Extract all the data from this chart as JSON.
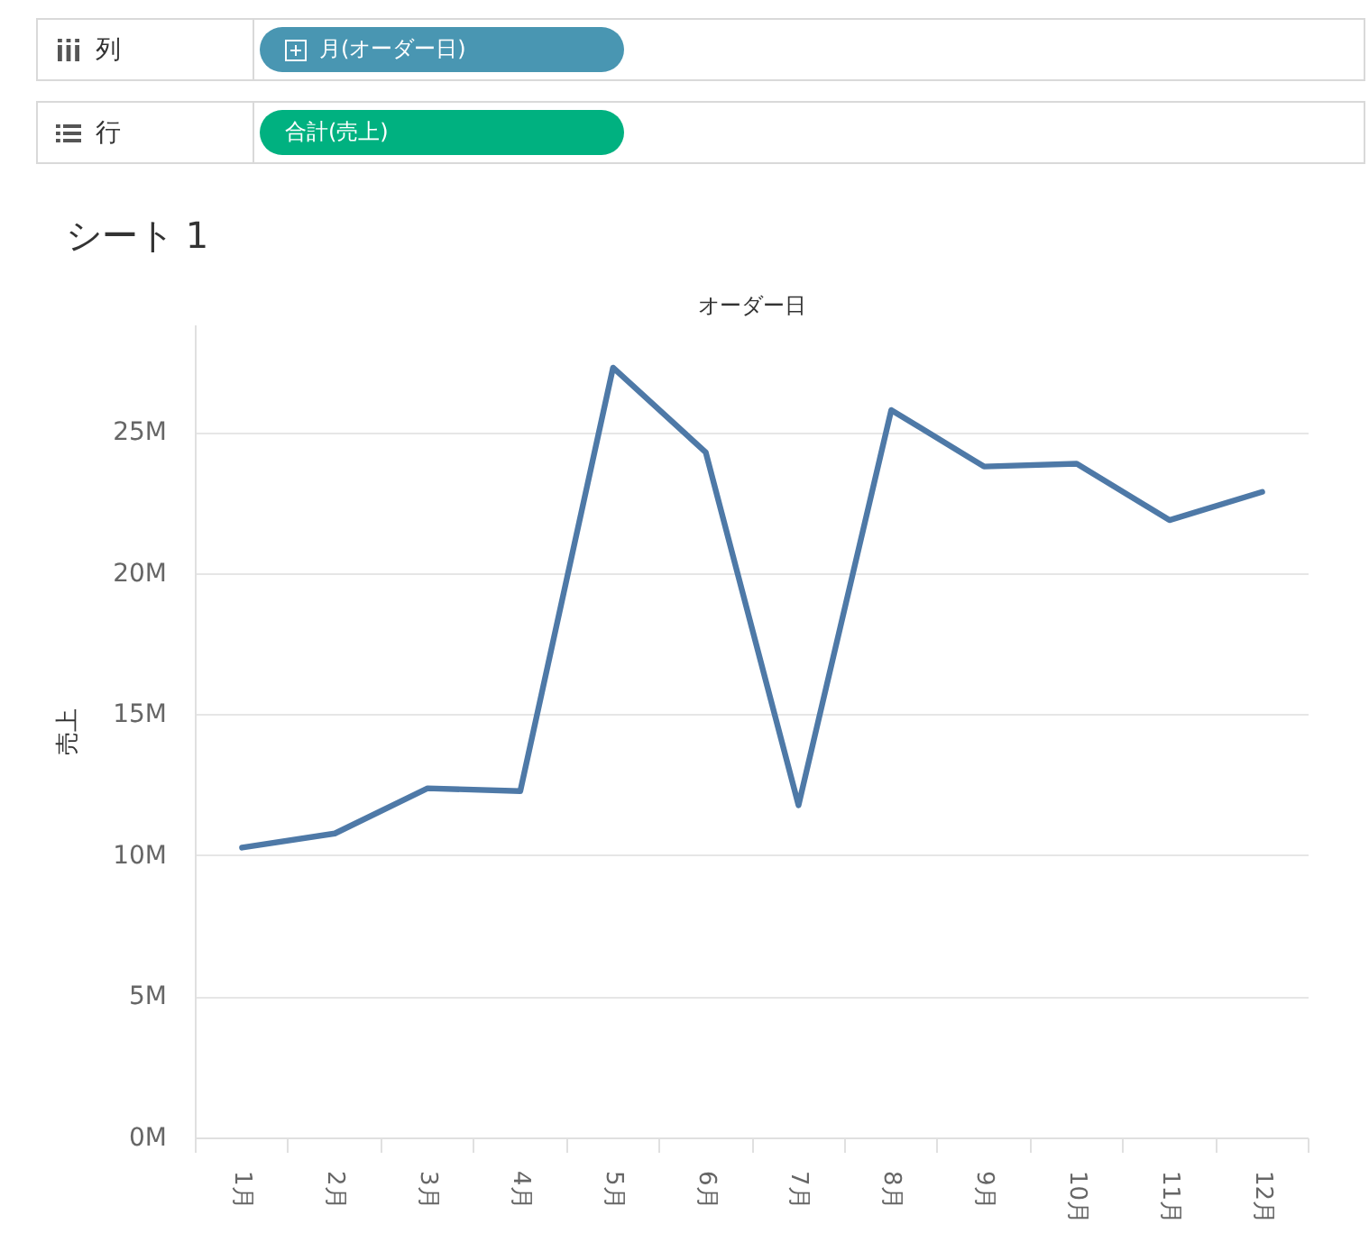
{
  "chart_data": {
    "type": "line",
    "title": "シート 1",
    "xlabel": "オーダー日",
    "ylabel": "売上",
    "annotations": [
      "列",
      "月(オーダー日)",
      "行",
      "合計(売上)"
    ],
    "categories": [
      "1月",
      "2月",
      "3月",
      "4月",
      "5月",
      "6月",
      "7月",
      "8月",
      "9月",
      "10月",
      "11月",
      "12月"
    ],
    "values": [
      10.3,
      10.8,
      12.4,
      12.3,
      27.3,
      24.3,
      11.8,
      25.8,
      23.8,
      23.9,
      21.9,
      22.9
    ],
    "color": "#4e79a7",
    "ylim": [
      0,
      28.8
    ],
    "yticks": [
      {
        "value": 0,
        "label": "0M"
      },
      {
        "value": 5,
        "label": "5M"
      },
      {
        "value": 10,
        "label": "10M"
      },
      {
        "value": 15,
        "label": "15M"
      },
      {
        "value": 20,
        "label": "20M"
      },
      {
        "value": 25,
        "label": "25M"
      }
    ],
    "grid": "y"
  }
}
